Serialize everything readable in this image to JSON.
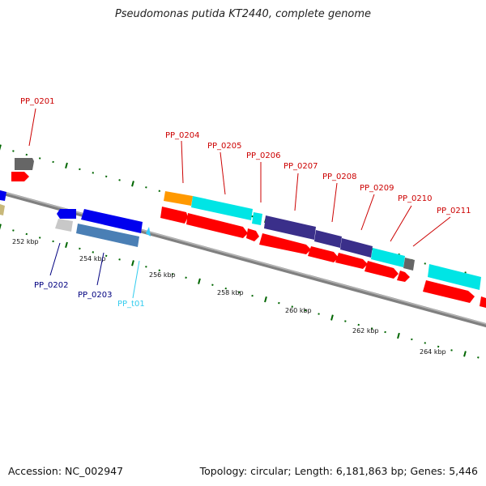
{
  "title": "Pseudomonas putida KT2440, complete genome",
  "footer": {
    "accession": "Accession: NC_002947",
    "stats": "Topology: circular; Length: 6,181,863 bp; Genes: 5,446"
  },
  "scale": {
    "ticks": [
      {
        "kbp": 252,
        "label": "252 kbp"
      },
      {
        "kbp": 254,
        "label": "254 kbp"
      },
      {
        "kbp": 256,
        "label": "256 kbp"
      },
      {
        "kbp": 258,
        "label": "258 kbp"
      },
      {
        "kbp": 260,
        "label": "260 kbp"
      },
      {
        "kbp": 262,
        "label": "262 kbp"
      },
      {
        "kbp": 264,
        "label": "264 kbp"
      }
    ]
  },
  "colors": {
    "cds": "#ff0000",
    "gene_blue": "#0000ee",
    "gene_steel": "#4a7fb5",
    "gene_cyan": "#00e5e5",
    "gene_indigo": "#3a2f8a",
    "gene_orange": "#ff9900",
    "gene_grey": "#666666",
    "gene_lightgrey": "#c8c8c8",
    "gene_olive": "#c8b87a",
    "trna": "#33ccff",
    "label_red": "#cc0000",
    "label_blue": "#000080",
    "label_cyan": "#33ccee",
    "gc_ticks": "#006600",
    "backbone": "#888888"
  },
  "features": [
    {
      "id": "PP_0201",
      "label": "PP_0201",
      "color": "#cc0000"
    },
    {
      "id": "PP_0202",
      "label": "PP_0202",
      "color": "#000080"
    },
    {
      "id": "PP_0203",
      "label": "PP_0203",
      "color": "#000080"
    },
    {
      "id": "PP_t01",
      "label": "PP_t01",
      "color": "#33ccee"
    },
    {
      "id": "PP_0204",
      "label": "PP_0204",
      "color": "#cc0000"
    },
    {
      "id": "PP_0205",
      "label": "PP_0205",
      "color": "#cc0000"
    },
    {
      "id": "PP_0206",
      "label": "PP_0206",
      "color": "#cc0000"
    },
    {
      "id": "PP_0207",
      "label": "PP_0207",
      "color": "#cc0000"
    },
    {
      "id": "PP_0208",
      "label": "PP_0208",
      "color": "#cc0000"
    },
    {
      "id": "PP_0209",
      "label": "PP_0209",
      "color": "#cc0000"
    },
    {
      "id": "PP_0210",
      "label": "PP_0210",
      "color": "#cc0000"
    },
    {
      "id": "PP_0211",
      "label": "PP_0211",
      "color": "#cc0000"
    }
  ]
}
